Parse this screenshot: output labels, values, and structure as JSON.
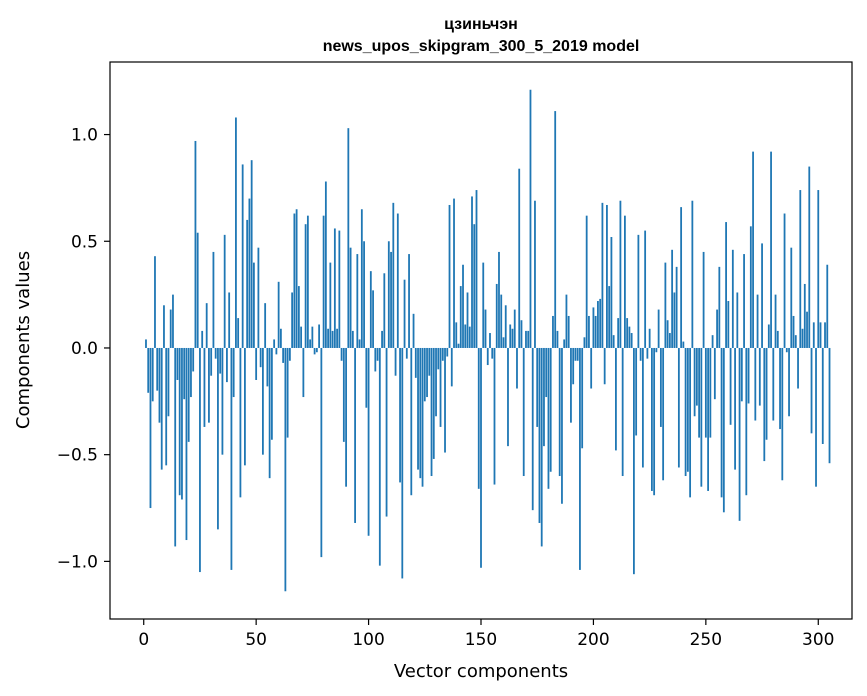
{
  "chart_data": {
    "type": "bar",
    "title_line1": "цзиньчэн",
    "title_line2": "news_upos_skipgram_300_5_2019 model",
    "xlabel": "Vector components",
    "ylabel": "Components values",
    "xlim": [
      -15,
      315
    ],
    "ylim": [
      -1.27,
      1.34
    ],
    "x_ticks": [
      0,
      50,
      100,
      150,
      200,
      250,
      300
    ],
    "x_tick_labels": [
      "0",
      "50",
      "100",
      "150",
      "200",
      "250",
      "300"
    ],
    "y_ticks": [
      -1.0,
      -0.5,
      0.0,
      0.5,
      1.0
    ],
    "y_tick_labels": [
      "−1.0",
      "−0.5",
      "0.0",
      "0.5",
      "1.0"
    ],
    "bar_color": "#1f77b4",
    "x_start": 1,
    "values": [
      0.04,
      -0.21,
      -0.75,
      -0.25,
      0.43,
      -0.2,
      -0.35,
      -0.57,
      0.2,
      -0.55,
      -0.32,
      0.18,
      0.25,
      -0.93,
      -0.15,
      -0.69,
      -0.71,
      -0.24,
      -0.9,
      -0.44,
      -0.23,
      -0.11,
      0.97,
      0.54,
      -1.05,
      0.08,
      -0.37,
      0.21,
      -0.35,
      -0.13,
      0.45,
      -0.05,
      -0.85,
      -0.12,
      -0.5,
      0.53,
      -0.16,
      0.26,
      -1.04,
      -0.23,
      1.08,
      0.14,
      -0.7,
      0.86,
      -0.55,
      0.6,
      0.7,
      0.88,
      0.4,
      -0.15,
      0.47,
      -0.09,
      -0.5,
      0.21,
      -0.18,
      -0.61,
      -0.43,
      0.04,
      -0.03,
      0.31,
      0.09,
      -0.07,
      -1.14,
      -0.42,
      -0.06,
      0.26,
      0.63,
      0.65,
      0.29,
      0.1,
      -0.23,
      0.58,
      0.62,
      0.04,
      0.1,
      -0.03,
      -0.02,
      0.11,
      -0.98,
      0.62,
      0.78,
      0.09,
      0.4,
      0.08,
      0.56,
      0.09,
      0.55,
      -0.06,
      -0.44,
      -0.65,
      1.03,
      0.47,
      0.08,
      -0.82,
      0.44,
      0.04,
      0.65,
      0.5,
      -0.28,
      -0.88,
      0.36,
      0.27,
      -0.11,
      -0.06,
      -1.02,
      0.08,
      0.35,
      -0.79,
      0.5,
      0.45,
      0.68,
      -0.13,
      0.63,
      -0.63,
      -1.08,
      0.32,
      -0.05,
      0.44,
      -0.69,
      0.16,
      -0.14,
      -0.57,
      -0.61,
      -0.65,
      -0.25,
      -0.23,
      -0.13,
      -0.6,
      -0.52,
      -0.32,
      -0.1,
      -0.37,
      -0.06,
      -0.49,
      -0.04,
      0.67,
      -0.18,
      0.7,
      0.12,
      0.02,
      0.29,
      0.39,
      0.11,
      0.26,
      0.1,
      0.71,
      0.58,
      0.74,
      -0.66,
      -1.03,
      0.4,
      0.18,
      -0.08,
      0.07,
      -0.05,
      -0.64,
      0.3,
      0.45,
      0.25,
      0.05,
      0.2,
      -0.46,
      0.11,
      0.09,
      0.18,
      -0.19,
      0.84,
      0.13,
      -0.6,
      0.08,
      0.08,
      1.21,
      -0.76,
      0.69,
      -0.37,
      -0.82,
      -0.93,
      -0.46,
      -0.23,
      -0.66,
      -0.58,
      0.15,
      1.11,
      0.08,
      -0.6,
      -0.73,
      0.04,
      0.25,
      0.15,
      -0.35,
      -0.17,
      -0.06,
      -0.06,
      -1.04,
      -0.47,
      0.05,
      0.62,
      0.15,
      -0.19,
      0.19,
      0.15,
      0.22,
      0.23,
      0.68,
      -0.17,
      0.67,
      0.29,
      0.52,
      0.06,
      -0.48,
      0.14,
      0.69,
      -0.6,
      0.62,
      0.14,
      0.1,
      0.07,
      -1.06,
      -0.41,
      0.53,
      -0.06,
      -0.56,
      0.55,
      -0.05,
      0.09,
      -0.67,
      -0.69,
      -0.02,
      0.18,
      -0.37,
      -0.62,
      0.4,
      0.13,
      0.07,
      0.46,
      0.26,
      0.38,
      -0.56,
      0.66,
      0.03,
      -0.6,
      -0.58,
      -0.7,
      0.69,
      -0.32,
      -0.27,
      -0.42,
      -0.65,
      0.45,
      -0.42,
      -0.67,
      -0.42,
      0.06,
      -0.24,
      0.18,
      0.38,
      -0.7,
      -0.77,
      0.59,
      0.22,
      -0.36,
      0.46,
      -0.57,
      0.26,
      -0.81,
      -0.25,
      0.44,
      -0.69,
      -0.26,
      0.57,
      0.92,
      -0.34,
      0.25,
      -0.27,
      0.49,
      -0.53,
      -0.43,
      0.11,
      0.92,
      -0.34,
      0.25,
      0.08,
      -0.38,
      -0.62,
      0.63,
      -0.02,
      -0.32,
      0.47,
      0.15,
      0.06,
      -0.19,
      0.74,
      0.09,
      0.3,
      0.17,
      0.85,
      -0.4,
      0.12,
      -0.65,
      0.74,
      0.12,
      -0.45,
      0.12,
      0.39,
      -0.54
    ]
  }
}
